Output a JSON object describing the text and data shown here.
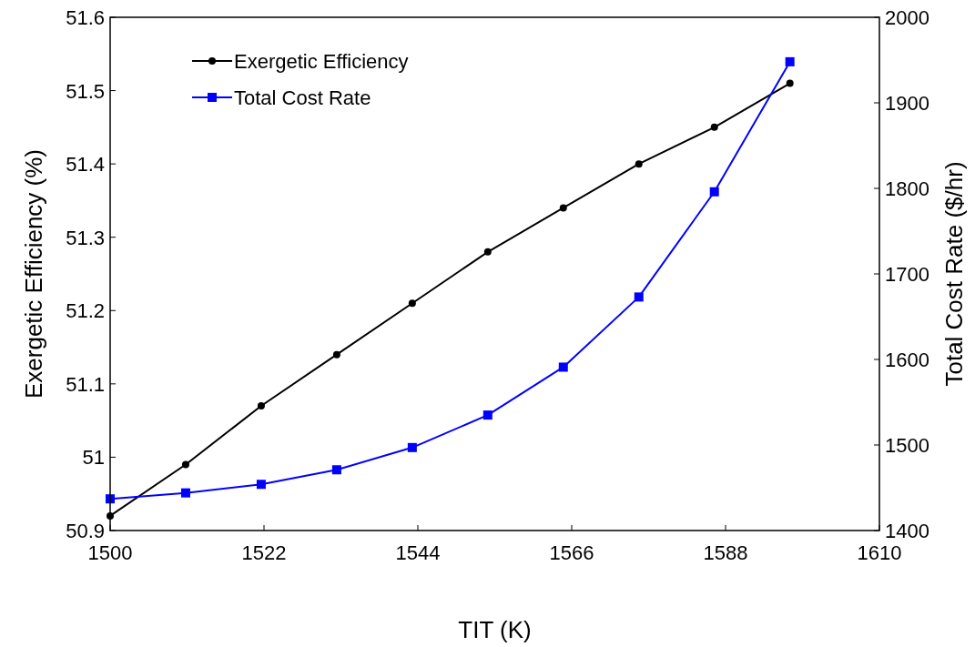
{
  "chart_data": {
    "type": "line",
    "xlabel": "TIT (K)",
    "ylabel": "Exergetic Efficiency (%)",
    "y2label": "Total Cost Rate ($/hr)",
    "x": [
      1500,
      1510.8,
      1521.6,
      1532.4,
      1543.2,
      1554,
      1564.8,
      1575.6,
      1586.4,
      1597.2
    ],
    "xlim": [
      1500,
      1610
    ],
    "xticks": [
      1500,
      1522,
      1544,
      1566,
      1588,
      1610
    ],
    "ylim": [
      50.9,
      51.6
    ],
    "yticks": [
      {
        "value": 50.9,
        "label": "50.9"
      },
      {
        "value": 51,
        "label": "51"
      },
      {
        "value": 51.1,
        "label": "51.1"
      },
      {
        "value": 51.2,
        "label": "51.2"
      },
      {
        "value": 51.3,
        "label": "51.3"
      },
      {
        "value": 51.4,
        "label": "51.4"
      },
      {
        "value": 51.5,
        "label": "51.5"
      },
      {
        "value": 51.6,
        "label": "51.6"
      }
    ],
    "y2lim": [
      1400,
      2000
    ],
    "y2ticks": [
      1400,
      1500,
      1600,
      1700,
      1800,
      1900,
      2000
    ],
    "series": [
      {
        "name": "Exergetic Efficiency",
        "color": "#000000",
        "marker": "circle",
        "values": [
          50.92,
          50.99,
          51.07,
          51.14,
          51.21,
          51.28,
          51.34,
          51.4,
          51.45,
          51.51
        ]
      },
      {
        "name": "Total Cost Rate",
        "color": "#0000ff",
        "marker": "square",
        "axis": "y2",
        "values": [
          1437,
          1444,
          1454,
          1471,
          1497,
          1535,
          1591,
          1673,
          1796,
          1948
        ]
      }
    ],
    "legend": "top left",
    "grid": false
  }
}
